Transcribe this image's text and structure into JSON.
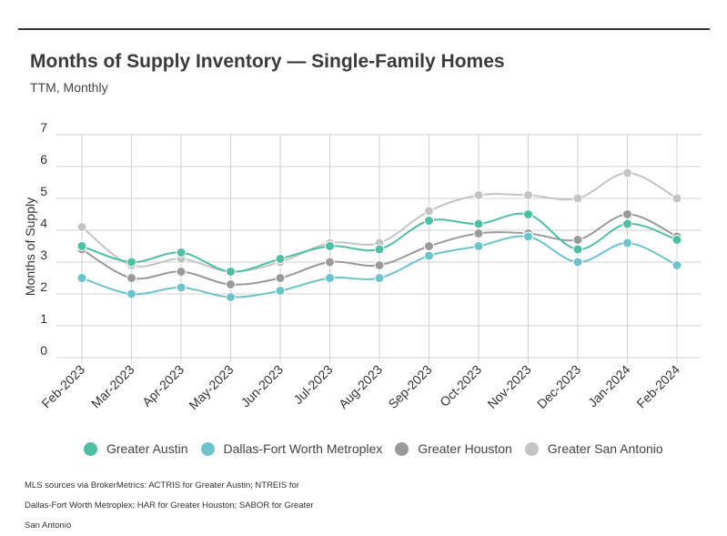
{
  "header": {
    "title": "Months of Supply Inventory — Single-Family Homes",
    "subtitle": "TTM, Monthly"
  },
  "footnote": "MLS sources via BrokerMetrics: ACTRIS for Greater Austin; NTREIS for Dallas-Fort Worth Metroplex; HAR for Greater Houston; SABOR for Greater San Antonio",
  "chart_data": {
    "type": "line",
    "title": "Months of Supply Inventory — Single-Family Homes",
    "subtitle": "TTM, Monthly",
    "xlabel": "",
    "ylabel": "Months of Supply",
    "ylim": [
      0,
      7
    ],
    "yticks": [
      0,
      1,
      2,
      3,
      4,
      5,
      6,
      7
    ],
    "grid": true,
    "legend_position": "bottom",
    "categories": [
      "Feb-2023",
      "Mar-2023",
      "Apr-2023",
      "May-2023",
      "Jun-2023",
      "Jul-2023",
      "Aug-2023",
      "Sep-2023",
      "Oct-2023",
      "Nov-2023",
      "Dec-2023",
      "Jan-2024",
      "Feb-2024"
    ],
    "series": [
      {
        "name": "Greater Austin",
        "color": "#4dbfa3",
        "values": [
          3.5,
          3.0,
          3.3,
          2.7,
          3.1,
          3.5,
          3.4,
          4.3,
          4.2,
          4.5,
          3.4,
          4.2,
          3.7
        ]
      },
      {
        "name": "Dallas-Fort Worth Metroplex",
        "color": "#6cc3cb",
        "values": [
          2.5,
          2.0,
          2.2,
          1.9,
          2.1,
          2.5,
          2.5,
          3.2,
          3.5,
          3.8,
          3.0,
          3.6,
          2.9
        ]
      },
      {
        "name": "Greater Houston",
        "color": "#9a9a9a",
        "values": [
          3.4,
          2.5,
          2.7,
          2.3,
          2.5,
          3.0,
          2.9,
          3.5,
          3.9,
          3.9,
          3.7,
          4.5,
          3.8
        ]
      },
      {
        "name": "Greater San Antonio",
        "color": "#c4c4c4",
        "values": [
          4.1,
          2.9,
          3.1,
          2.7,
          3.0,
          3.6,
          3.6,
          4.6,
          5.1,
          5.1,
          5.0,
          5.8,
          5.0
        ]
      }
    ]
  }
}
